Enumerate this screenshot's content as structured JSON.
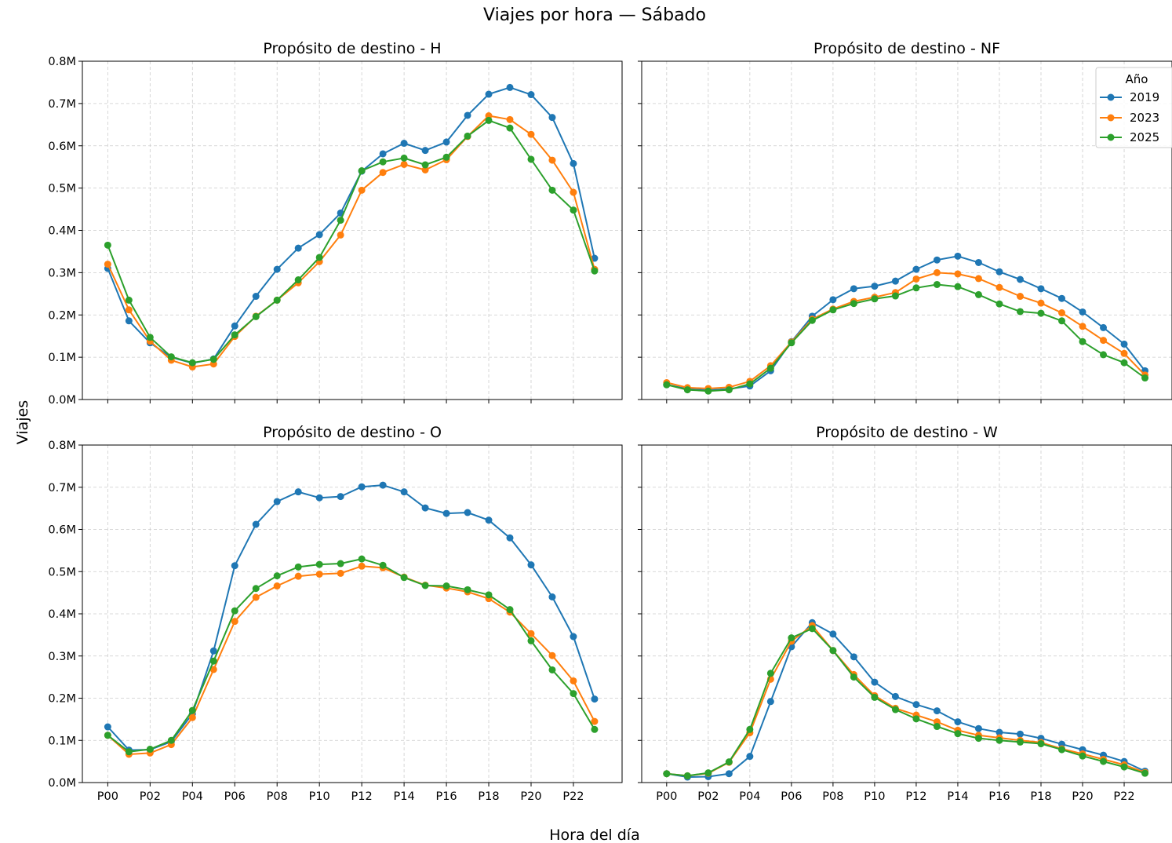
{
  "figure": {
    "title": "Viajes por hora — Sábado",
    "xlabel": "Hora del día",
    "ylabel": "Viajes"
  },
  "legend": {
    "title": "Año",
    "placement": "top-right of panel NF",
    "items": [
      {
        "label": "2019",
        "color": "#1f77b4"
      },
      {
        "label": "2023",
        "color": "#ff7f0e"
      },
      {
        "label": "2025",
        "color": "#2ca02c"
      }
    ]
  },
  "chart_data": [
    {
      "type": "line",
      "title": "Propósito de destino - H",
      "x": [
        "P00",
        "P01",
        "P02",
        "P03",
        "P04",
        "P05",
        "P06",
        "P07",
        "P08",
        "P09",
        "P10",
        "P11",
        "P12",
        "P13",
        "P14",
        "P15",
        "P16",
        "P17",
        "P18",
        "P19",
        "P20",
        "P21",
        "P22",
        "P23"
      ],
      "x_tick_labels": [
        "P00",
        "P02",
        "P04",
        "P06",
        "P08",
        "P10",
        "P12",
        "P14",
        "P16",
        "P18",
        "P20",
        "P22"
      ],
      "ylim": [
        0,
        0.8
      ],
      "y_ticks": [
        "0.0M",
        "0.1M",
        "0.2M",
        "0.3M",
        "0.4M",
        "0.5M",
        "0.6M",
        "0.7M",
        "0.8M"
      ],
      "y_unit": "M",
      "grid": true,
      "series": [
        {
          "name": "2019",
          "color": "#1f77b4",
          "values": [
            0.31,
            0.186,
            0.134,
            0.1,
            0.086,
            0.096,
            0.174,
            0.244,
            0.308,
            0.358,
            0.39,
            0.441,
            0.54,
            0.581,
            0.606,
            0.589,
            0.609,
            0.672,
            0.722,
            0.738,
            0.721,
            0.667,
            0.558,
            0.334
          ]
        },
        {
          "name": "2023",
          "color": "#ff7f0e",
          "values": [
            0.32,
            0.212,
            0.138,
            0.093,
            0.077,
            0.084,
            0.149,
            0.197,
            0.235,
            0.276,
            0.326,
            0.389,
            0.495,
            0.537,
            0.556,
            0.543,
            0.567,
            0.622,
            0.671,
            0.662,
            0.627,
            0.566,
            0.49,
            0.308
          ]
        },
        {
          "name": "2025",
          "color": "#2ca02c",
          "values": [
            0.365,
            0.235,
            0.147,
            0.101,
            0.087,
            0.095,
            0.153,
            0.196,
            0.235,
            0.283,
            0.336,
            0.424,
            0.541,
            0.562,
            0.571,
            0.555,
            0.573,
            0.623,
            0.66,
            0.642,
            0.568,
            0.495,
            0.448,
            0.304
          ]
        }
      ]
    },
    {
      "type": "line",
      "title": "Propósito de destino - NF",
      "x": [
        "P00",
        "P01",
        "P02",
        "P03",
        "P04",
        "P05",
        "P06",
        "P07",
        "P08",
        "P09",
        "P10",
        "P11",
        "P12",
        "P13",
        "P14",
        "P15",
        "P16",
        "P17",
        "P18",
        "P19",
        "P20",
        "P21",
        "P22",
        "P23"
      ],
      "x_tick_labels": [
        "P00",
        "P02",
        "P04",
        "P06",
        "P08",
        "P10",
        "P12",
        "P14",
        "P16",
        "P18",
        "P20",
        "P22"
      ],
      "ylim": [
        0,
        0.8
      ],
      "y_unit": "M",
      "grid": true,
      "series": [
        {
          "name": "2019",
          "color": "#1f77b4",
          "values": [
            0.035,
            0.025,
            0.022,
            0.025,
            0.032,
            0.068,
            0.137,
            0.197,
            0.236,
            0.262,
            0.268,
            0.28,
            0.308,
            0.33,
            0.339,
            0.324,
            0.302,
            0.284,
            0.262,
            0.239,
            0.207,
            0.17,
            0.131,
            0.068
          ]
        },
        {
          "name": "2023",
          "color": "#ff7f0e",
          "values": [
            0.04,
            0.028,
            0.026,
            0.029,
            0.043,
            0.08,
            0.136,
            0.19,
            0.214,
            0.232,
            0.242,
            0.253,
            0.285,
            0.3,
            0.297,
            0.286,
            0.265,
            0.244,
            0.228,
            0.205,
            0.173,
            0.14,
            0.109,
            0.058
          ]
        },
        {
          "name": "2025",
          "color": "#2ca02c",
          "values": [
            0.035,
            0.023,
            0.02,
            0.023,
            0.037,
            0.074,
            0.134,
            0.187,
            0.212,
            0.227,
            0.238,
            0.245,
            0.264,
            0.272,
            0.267,
            0.248,
            0.226,
            0.208,
            0.204,
            0.186,
            0.137,
            0.106,
            0.087,
            0.051
          ]
        }
      ]
    },
    {
      "type": "line",
      "title": "Propósito de destino - O",
      "x": [
        "P00",
        "P01",
        "P02",
        "P03",
        "P04",
        "P05",
        "P06",
        "P07",
        "P08",
        "P09",
        "P10",
        "P11",
        "P12",
        "P13",
        "P14",
        "P15",
        "P16",
        "P17",
        "P18",
        "P19",
        "P20",
        "P21",
        "P22",
        "P23"
      ],
      "x_tick_labels": [
        "P00",
        "P02",
        "P04",
        "P06",
        "P08",
        "P10",
        "P12",
        "P14",
        "P16",
        "P18",
        "P20",
        "P22"
      ],
      "ylim": [
        0,
        0.8
      ],
      "y_ticks": [
        "0.0M",
        "0.1M",
        "0.2M",
        "0.3M",
        "0.4M",
        "0.5M",
        "0.6M",
        "0.7M",
        "0.8M"
      ],
      "y_unit": "M",
      "grid": true,
      "series": [
        {
          "name": "2019",
          "color": "#1f77b4",
          "values": [
            0.132,
            0.077,
            0.078,
            0.097,
            0.163,
            0.312,
            0.514,
            0.612,
            0.666,
            0.689,
            0.675,
            0.678,
            0.701,
            0.705,
            0.689,
            0.651,
            0.638,
            0.64,
            0.622,
            0.58,
            0.516,
            0.44,
            0.346,
            0.198
          ]
        },
        {
          "name": "2023",
          "color": "#ff7f0e",
          "values": [
            0.112,
            0.067,
            0.07,
            0.09,
            0.154,
            0.268,
            0.382,
            0.439,
            0.466,
            0.489,
            0.494,
            0.496,
            0.513,
            0.509,
            0.487,
            0.468,
            0.461,
            0.452,
            0.436,
            0.404,
            0.353,
            0.301,
            0.241,
            0.145
          ]
        },
        {
          "name": "2025",
          "color": "#2ca02c",
          "values": [
            0.112,
            0.073,
            0.079,
            0.1,
            0.171,
            0.288,
            0.407,
            0.46,
            0.49,
            0.511,
            0.517,
            0.519,
            0.53,
            0.515,
            0.486,
            0.467,
            0.466,
            0.457,
            0.445,
            0.41,
            0.336,
            0.267,
            0.211,
            0.126
          ]
        }
      ]
    },
    {
      "type": "line",
      "title": "Propósito de destino - W",
      "x": [
        "P00",
        "P01",
        "P02",
        "P03",
        "P04",
        "P05",
        "P06",
        "P07",
        "P08",
        "P09",
        "P10",
        "P11",
        "P12",
        "P13",
        "P14",
        "P15",
        "P16",
        "P17",
        "P18",
        "P19",
        "P20",
        "P21",
        "P22",
        "P23"
      ],
      "x_tick_labels": [
        "P00",
        "P02",
        "P04",
        "P06",
        "P08",
        "P10",
        "P12",
        "P14",
        "P16",
        "P18",
        "P20",
        "P22"
      ],
      "ylim": [
        0,
        0.8
      ],
      "y_unit": "M",
      "grid": true,
      "series": [
        {
          "name": "2019",
          "color": "#1f77b4",
          "values": [
            0.021,
            0.013,
            0.014,
            0.021,
            0.062,
            0.192,
            0.322,
            0.379,
            0.352,
            0.298,
            0.238,
            0.204,
            0.185,
            0.17,
            0.144,
            0.128,
            0.119,
            0.115,
            0.105,
            0.091,
            0.078,
            0.065,
            0.05,
            0.027
          ]
        },
        {
          "name": "2023",
          "color": "#ff7f0e",
          "values": [
            0.021,
            0.016,
            0.022,
            0.048,
            0.118,
            0.245,
            0.335,
            0.372,
            0.313,
            0.256,
            0.206,
            0.176,
            0.16,
            0.144,
            0.124,
            0.112,
            0.106,
            0.1,
            0.095,
            0.08,
            0.068,
            0.055,
            0.042,
            0.024
          ]
        },
        {
          "name": "2025",
          "color": "#2ca02c",
          "values": [
            0.021,
            0.016,
            0.023,
            0.049,
            0.126,
            0.259,
            0.343,
            0.365,
            0.313,
            0.25,
            0.202,
            0.173,
            0.151,
            0.133,
            0.116,
            0.105,
            0.1,
            0.096,
            0.092,
            0.078,
            0.063,
            0.05,
            0.037,
            0.022
          ]
        }
      ]
    }
  ]
}
